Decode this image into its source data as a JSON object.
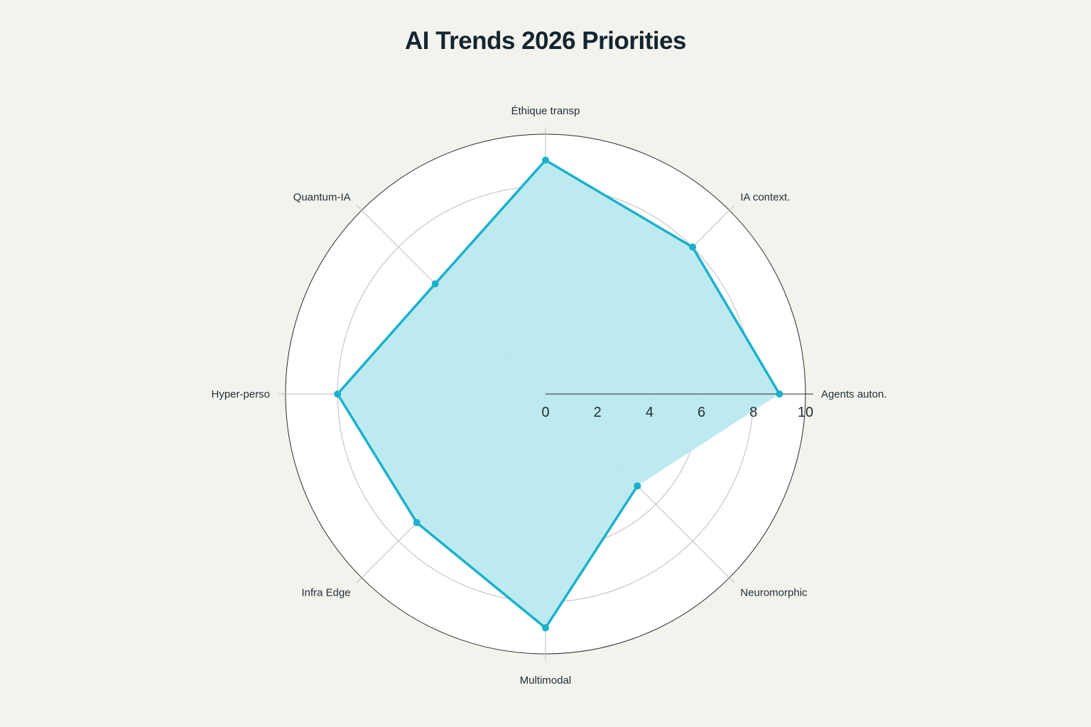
{
  "chart_data": {
    "type": "radar",
    "title": "AI Trends 2026 Priorities",
    "categories": [
      "Agents auton.",
      "IA context.",
      "Éthique transp",
      "Quantum-IA",
      "Hyper-perso",
      "Infra Edge",
      "Multimodal",
      "Neuromorphic"
    ],
    "series": [
      {
        "values": [
          9,
          8,
          9,
          6,
          8,
          7,
          9,
          5
        ]
      }
    ],
    "rrange": [
      0,
      10
    ],
    "rticks": [
      0,
      2,
      4,
      6,
      8,
      10
    ],
    "grid": true,
    "colors": {
      "line": "#1ab1cc",
      "fill": "#b9e9ef",
      "background": "#f3f3ee",
      "polar_bg": "#ffffff"
    }
  }
}
